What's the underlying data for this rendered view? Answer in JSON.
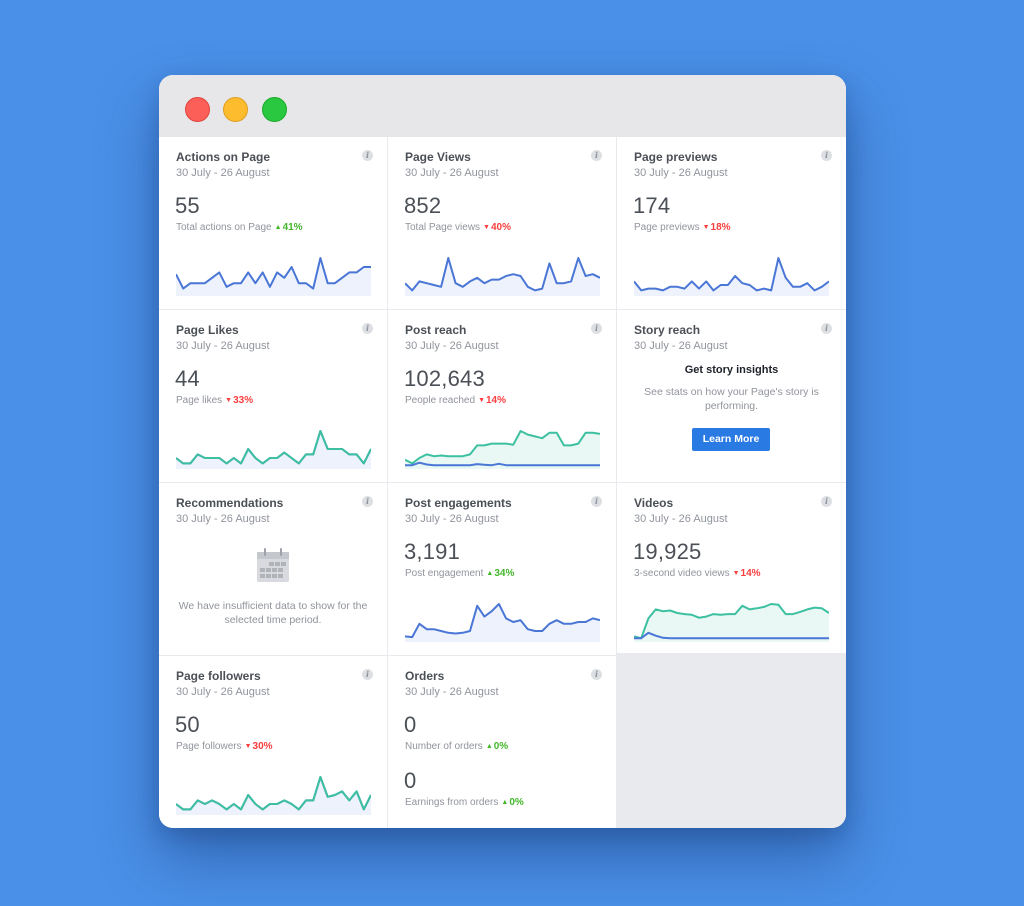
{
  "window": {
    "traffic_lights": [
      {
        "name": "close",
        "color": "#fc5f57"
      },
      {
        "name": "minimize",
        "color": "#fdbc2e"
      },
      {
        "name": "maximize",
        "color": "#29c840"
      }
    ]
  },
  "colors": {
    "background": "#4a90e8",
    "line_blue": "#4a76d6",
    "line_teal": "#3cc0a0",
    "fill_blue": "#eef2fd",
    "fill_teal": "#e9f8f4",
    "up": "#42b72a",
    "down": "#fa3e3e",
    "button": "#2a7ae4"
  },
  "cards": [
    {
      "title": "Actions on Page",
      "date": "30 July - 26 August",
      "value": "55",
      "label": "Total actions on Page",
      "delta": "41%",
      "direction": "up",
      "info_icon": "i"
    },
    {
      "title": "Page Views",
      "date": "30 July - 26 August",
      "value": "852",
      "label": "Total Page views",
      "delta": "40%",
      "direction": "down",
      "info_icon": "i"
    },
    {
      "title": "Page previews",
      "date": "30 July - 26 August",
      "value": "174",
      "label": "Page previews",
      "delta": "18%",
      "direction": "down",
      "info_icon": "i"
    },
    {
      "title": "Page Likes",
      "date": "30 July - 26 August",
      "value": "44",
      "label": "Page likes",
      "delta": "33%",
      "direction": "down",
      "info_icon": "i"
    },
    {
      "title": "Post reach",
      "date": "30 July - 26 August",
      "value": "102,643",
      "label": "People reached",
      "delta": "14%",
      "direction": "down",
      "info_icon": "i"
    },
    {
      "title": "Story reach",
      "date": "30 July - 26 August",
      "heading": "Get story insights",
      "text": "See stats on how your Page's story is performing.",
      "button": "Learn More",
      "info_icon": "i"
    },
    {
      "title": "Recommendations",
      "date": "30 July - 26 August",
      "text": "We have insufficient data to show for the selected time period.",
      "info_icon": "i"
    },
    {
      "title": "Post engagements",
      "date": "30 July - 26 August",
      "value": "3,191",
      "label": "Post engagement",
      "delta": "34%",
      "direction": "up",
      "info_icon": "i"
    },
    {
      "title": "Videos",
      "date": "30 July - 26 August",
      "value": "19,925",
      "label": "3-second video views",
      "delta": "14%",
      "direction": "down",
      "info_icon": "i"
    },
    {
      "title": "Page followers",
      "date": "30 July - 26 August",
      "value": "50",
      "label": "Page followers",
      "delta": "30%",
      "direction": "down",
      "info_icon": "i"
    },
    {
      "title": "Orders",
      "date": "30 July - 26 August",
      "value": "0",
      "label": "Number of orders",
      "delta": "0%",
      "direction": "up",
      "value2": "0",
      "label2": "Earnings from orders",
      "delta2": "0%",
      "direction2": "up",
      "info_icon": "i"
    }
  ],
  "sparklines": {
    "actions": [
      [
        0,
        0.55
      ],
      [
        1,
        0.15
      ],
      [
        2,
        0.3
      ],
      [
        3,
        0.3
      ],
      [
        4,
        0.3
      ],
      [
        5,
        0.45
      ],
      [
        6,
        0.6
      ],
      [
        7,
        0.2
      ],
      [
        8,
        0.3
      ],
      [
        9,
        0.3
      ],
      [
        10,
        0.6
      ],
      [
        11,
        0.3
      ],
      [
        12,
        0.6
      ],
      [
        13,
        0.2
      ],
      [
        14,
        0.6
      ],
      [
        15,
        0.45
      ],
      [
        16,
        0.75
      ],
      [
        17,
        0.3
      ],
      [
        18,
        0.3
      ],
      [
        19,
        0.15
      ],
      [
        20,
        1.0
      ],
      [
        21,
        0.3
      ],
      [
        22,
        0.3
      ],
      [
        23,
        0.45
      ],
      [
        24,
        0.6
      ],
      [
        25,
        0.6
      ],
      [
        26,
        0.75
      ],
      [
        27,
        0.75
      ]
    ],
    "page_views": [
      [
        0,
        0.3
      ],
      [
        1,
        0.1
      ],
      [
        2,
        0.35
      ],
      [
        3,
        0.3
      ],
      [
        4,
        0.25
      ],
      [
        5,
        0.2
      ],
      [
        6,
        1.0
      ],
      [
        7,
        0.3
      ],
      [
        8,
        0.2
      ],
      [
        9,
        0.35
      ],
      [
        10,
        0.45
      ],
      [
        11,
        0.3
      ],
      [
        12,
        0.4
      ],
      [
        13,
        0.4
      ],
      [
        14,
        0.5
      ],
      [
        15,
        0.55
      ],
      [
        16,
        0.5
      ],
      [
        17,
        0.2
      ],
      [
        18,
        0.1
      ],
      [
        19,
        0.15
      ],
      [
        20,
        0.85
      ],
      [
        21,
        0.3
      ],
      [
        22,
        0.3
      ],
      [
        23,
        0.35
      ],
      [
        24,
        1.0
      ],
      [
        25,
        0.5
      ],
      [
        26,
        0.55
      ],
      [
        27,
        0.45
      ]
    ],
    "previews": [
      [
        0,
        0.35
      ],
      [
        1,
        0.1
      ],
      [
        2,
        0.15
      ],
      [
        3,
        0.15
      ],
      [
        4,
        0.1
      ],
      [
        5,
        0.2
      ],
      [
        6,
        0.2
      ],
      [
        7,
        0.15
      ],
      [
        8,
        0.35
      ],
      [
        9,
        0.15
      ],
      [
        10,
        0.35
      ],
      [
        11,
        0.1
      ],
      [
        12,
        0.25
      ],
      [
        13,
        0.25
      ],
      [
        14,
        0.5
      ],
      [
        15,
        0.3
      ],
      [
        16,
        0.25
      ],
      [
        17,
        0.1
      ],
      [
        18,
        0.15
      ],
      [
        19,
        0.1
      ],
      [
        20,
        1.0
      ],
      [
        21,
        0.45
      ],
      [
        22,
        0.2
      ],
      [
        23,
        0.2
      ],
      [
        24,
        0.3
      ],
      [
        25,
        0.1
      ],
      [
        26,
        0.2
      ],
      [
        27,
        0.35
      ]
    ],
    "likes": [
      [
        0,
        0.25
      ],
      [
        1,
        0.1
      ],
      [
        2,
        0.1
      ],
      [
        3,
        0.35
      ],
      [
        4,
        0.25
      ],
      [
        5,
        0.25
      ],
      [
        6,
        0.25
      ],
      [
        7,
        0.1
      ],
      [
        8,
        0.25
      ],
      [
        9,
        0.1
      ],
      [
        10,
        0.5
      ],
      [
        11,
        0.25
      ],
      [
        12,
        0.1
      ],
      [
        13,
        0.25
      ],
      [
        14,
        0.25
      ],
      [
        15,
        0.4
      ],
      [
        16,
        0.25
      ],
      [
        17,
        0.1
      ],
      [
        18,
        0.35
      ],
      [
        19,
        0.35
      ],
      [
        20,
        1.0
      ],
      [
        21,
        0.5
      ],
      [
        22,
        0.5
      ],
      [
        23,
        0.5
      ],
      [
        24,
        0.35
      ],
      [
        25,
        0.35
      ],
      [
        26,
        0.1
      ],
      [
        27,
        0.5
      ]
    ],
    "followers": [
      [
        0,
        0.25
      ],
      [
        1,
        0.1
      ],
      [
        2,
        0.1
      ],
      [
        3,
        0.35
      ],
      [
        4,
        0.25
      ],
      [
        5,
        0.35
      ],
      [
        6,
        0.25
      ],
      [
        7,
        0.1
      ],
      [
        8,
        0.25
      ],
      [
        9,
        0.1
      ],
      [
        10,
        0.5
      ],
      [
        11,
        0.25
      ],
      [
        12,
        0.1
      ],
      [
        13,
        0.25
      ],
      [
        14,
        0.25
      ],
      [
        15,
        0.35
      ],
      [
        16,
        0.25
      ],
      [
        17,
        0.1
      ],
      [
        18,
        0.35
      ],
      [
        19,
        0.35
      ],
      [
        20,
        1.0
      ],
      [
        21,
        0.45
      ],
      [
        22,
        0.5
      ],
      [
        23,
        0.6
      ],
      [
        24,
        0.35
      ],
      [
        25,
        0.6
      ],
      [
        26,
        0.1
      ],
      [
        27,
        0.5
      ]
    ],
    "reach_teal": [
      [
        0,
        0.2
      ],
      [
        1,
        0.1
      ],
      [
        2,
        0.25
      ],
      [
        3,
        0.35
      ],
      [
        4,
        0.3
      ],
      [
        5,
        0.32
      ],
      [
        6,
        0.3
      ],
      [
        7,
        0.3
      ],
      [
        8,
        0.3
      ],
      [
        9,
        0.35
      ],
      [
        10,
        0.6
      ],
      [
        11,
        0.6
      ],
      [
        12,
        0.65
      ],
      [
        13,
        0.65
      ],
      [
        14,
        0.65
      ],
      [
        15,
        0.62
      ],
      [
        16,
        1.0
      ],
      [
        17,
        0.9
      ],
      [
        18,
        0.85
      ],
      [
        19,
        0.8
      ],
      [
        20,
        0.95
      ],
      [
        21,
        0.95
      ],
      [
        22,
        0.6
      ],
      [
        23,
        0.6
      ],
      [
        24,
        0.65
      ],
      [
        25,
        0.95
      ],
      [
        26,
        0.95
      ],
      [
        27,
        0.92
      ]
    ],
    "reach_blue": [
      [
        0,
        0.05
      ],
      [
        1,
        0.05
      ],
      [
        2,
        0.12
      ],
      [
        3,
        0.07
      ],
      [
        4,
        0.05
      ],
      [
        5,
        0.05
      ],
      [
        6,
        0.05
      ],
      [
        7,
        0.05
      ],
      [
        8,
        0.05
      ],
      [
        9,
        0.05
      ],
      [
        10,
        0.08
      ],
      [
        11,
        0.06
      ],
      [
        12,
        0.05
      ],
      [
        13,
        0.09
      ],
      [
        14,
        0.05
      ],
      [
        15,
        0.05
      ],
      [
        16,
        0.05
      ],
      [
        17,
        0.05
      ],
      [
        18,
        0.05
      ],
      [
        19,
        0.05
      ],
      [
        20,
        0.05
      ],
      [
        21,
        0.05
      ],
      [
        22,
        0.05
      ],
      [
        23,
        0.05
      ],
      [
        24,
        0.05
      ],
      [
        25,
        0.05
      ],
      [
        26,
        0.05
      ],
      [
        27,
        0.05
      ]
    ],
    "engagement": [
      [
        0,
        0.1
      ],
      [
        1,
        0.08
      ],
      [
        2,
        0.45
      ],
      [
        3,
        0.3
      ],
      [
        4,
        0.3
      ],
      [
        5,
        0.25
      ],
      [
        6,
        0.2
      ],
      [
        7,
        0.18
      ],
      [
        8,
        0.2
      ],
      [
        9,
        0.25
      ],
      [
        10,
        0.95
      ],
      [
        11,
        0.65
      ],
      [
        12,
        0.8
      ],
      [
        13,
        1.0
      ],
      [
        14,
        0.6
      ],
      [
        15,
        0.5
      ],
      [
        16,
        0.55
      ],
      [
        17,
        0.3
      ],
      [
        18,
        0.25
      ],
      [
        19,
        0.25
      ],
      [
        20,
        0.45
      ],
      [
        21,
        0.55
      ],
      [
        22,
        0.45
      ],
      [
        23,
        0.45
      ],
      [
        24,
        0.5
      ],
      [
        25,
        0.5
      ],
      [
        26,
        0.6
      ],
      [
        27,
        0.55
      ]
    ],
    "video_teal": [
      [
        0,
        0.1
      ],
      [
        1,
        0.05
      ],
      [
        2,
        0.6
      ],
      [
        3,
        0.85
      ],
      [
        4,
        0.8
      ],
      [
        5,
        0.82
      ],
      [
        6,
        0.75
      ],
      [
        7,
        0.72
      ],
      [
        8,
        0.7
      ],
      [
        9,
        0.62
      ],
      [
        10,
        0.65
      ],
      [
        11,
        0.72
      ],
      [
        12,
        0.7
      ],
      [
        13,
        0.72
      ],
      [
        14,
        0.72
      ],
      [
        15,
        0.95
      ],
      [
        16,
        0.85
      ],
      [
        17,
        0.88
      ],
      [
        18,
        0.92
      ],
      [
        19,
        1.0
      ],
      [
        20,
        0.98
      ],
      [
        21,
        0.72
      ],
      [
        22,
        0.72
      ],
      [
        23,
        0.78
      ],
      [
        24,
        0.85
      ],
      [
        25,
        0.9
      ],
      [
        26,
        0.88
      ],
      [
        27,
        0.75
      ]
    ],
    "video_blue": [
      [
        0,
        0.05
      ],
      [
        1,
        0.05
      ],
      [
        2,
        0.2
      ],
      [
        3,
        0.12
      ],
      [
        4,
        0.06
      ],
      [
        5,
        0.05
      ],
      [
        6,
        0.05
      ],
      [
        7,
        0.05
      ],
      [
        8,
        0.05
      ],
      [
        9,
        0.05
      ],
      [
        10,
        0.05
      ],
      [
        11,
        0.05
      ],
      [
        12,
        0.05
      ],
      [
        13,
        0.05
      ],
      [
        14,
        0.05
      ],
      [
        15,
        0.05
      ],
      [
        16,
        0.05
      ],
      [
        17,
        0.05
      ],
      [
        18,
        0.05
      ],
      [
        19,
        0.05
      ],
      [
        20,
        0.05
      ],
      [
        21,
        0.05
      ],
      [
        22,
        0.05
      ],
      [
        23,
        0.05
      ],
      [
        24,
        0.05
      ],
      [
        25,
        0.05
      ],
      [
        26,
        0.05
      ],
      [
        27,
        0.05
      ]
    ]
  }
}
